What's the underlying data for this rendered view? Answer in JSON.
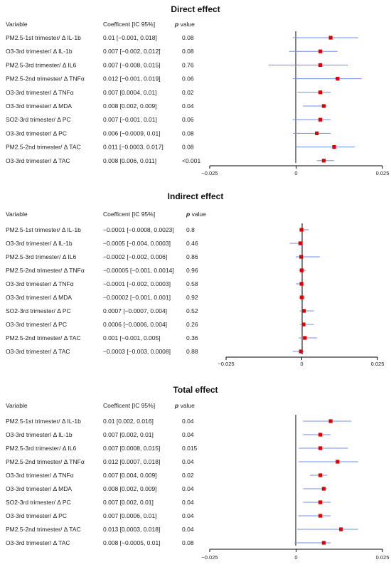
{
  "colors": {
    "ci": "#6f8fe6",
    "point": "#e00000",
    "axis": "#000000"
  },
  "headers": {
    "variable": "Variable",
    "coef": "Coefficent [IC 95%]",
    "p_italic": "p",
    "p_rest": " value"
  },
  "chart_data": [
    {
      "type": "forest",
      "title": "Direct effect",
      "xlim": [
        -0.025,
        0.025
      ],
      "ticks": [
        {
          "value": -0.025,
          "label": "−0.025"
        },
        {
          "value": 0,
          "label": "0"
        },
        {
          "value": 0.025,
          "label": "0.025"
        }
      ],
      "rows": [
        {
          "variable": "PM2.5-1st trimester/ Δ IL-1b",
          "coef": "0.01 [−0.001, 0.018]",
          "p": "0.08",
          "est": 0.01,
          "lo": -0.001,
          "hi": 0.018
        },
        {
          "variable": "O3-3rd trimester/ Δ IL-1b",
          "coef": "0.007 [−0.002, 0.012]",
          "p": "0.08",
          "est": 0.007,
          "lo": -0.002,
          "hi": 0.012
        },
        {
          "variable": "PM2.5-3rd trimester/ Δ IL6",
          "coef": "0.007 [−0.008, 0.015]",
          "p": "0.76",
          "est": 0.007,
          "lo": -0.008,
          "hi": 0.015
        },
        {
          "variable": "PM2.5-2nd trimester/ Δ TNFα",
          "coef": "0.012 [−0.001, 0.019]",
          "p": "0.06",
          "est": 0.012,
          "lo": -0.001,
          "hi": 0.019
        },
        {
          "variable": "O3-3rd trimester/ Δ TNFα",
          "coef": "0.007 [0.0004, 0.01]",
          "p": "0.02",
          "est": 0.007,
          "lo": 0.0004,
          "hi": 0.01
        },
        {
          "variable": "O3-3rd trimester/ Δ MDA",
          "coef": "0.008 [0.002, 0.009]",
          "p": "0.04",
          "est": 0.008,
          "lo": 0.002,
          "hi": 0.009
        },
        {
          "variable": "SO2-3rd trimester/ Δ PC",
          "coef": "0.007 [−0.001, 0.01]",
          "p": "0.06",
          "est": 0.007,
          "lo": -0.001,
          "hi": 0.01
        },
        {
          "variable": "O3-3rd trimester/ Δ PC",
          "coef": "0.006 [−0.0009, 0.01]",
          "p": "0.08",
          "est": 0.006,
          "lo": -0.0009,
          "hi": 0.01
        },
        {
          "variable": "PM2.5-2nd trimester/ Δ TAC",
          "coef": "0.011 [−0.0003, 0.017]",
          "p": "0.08",
          "est": 0.011,
          "lo": -0.0003,
          "hi": 0.017
        },
        {
          "variable": "O3-3rd trimester/ Δ TAC",
          "coef": "0.008 [0.006, 0.011]",
          "p": "<0.001",
          "est": 0.008,
          "lo": 0.006,
          "hi": 0.011
        }
      ]
    },
    {
      "type": "forest",
      "title": "Indirect effect",
      "xlim": [
        -0.025,
        0.025
      ],
      "ticks": [
        {
          "value": -0.025,
          "label": "−0.025"
        },
        {
          "value": 0,
          "label": "0"
        },
        {
          "value": 0.025,
          "label": "0.025"
        }
      ],
      "rows": [
        {
          "variable": "PM2.5-1st trimester/ Δ IL-1b",
          "coef": "−0.0001 [−0.0008, 0.0023]",
          "p": "0.8",
          "est": -0.0001,
          "lo": -0.0008,
          "hi": 0.0023
        },
        {
          "variable": "O3-3rd trimester/ Δ IL-1b",
          "coef": "−0.0005 [−0.004, 0.0003]",
          "p": "0.46",
          "est": -0.0005,
          "lo": -0.004,
          "hi": 0.0003
        },
        {
          "variable": "PM2.5-3rd trimester/ Δ IL6",
          "coef": "−0.0002 [−0.002, 0.006]",
          "p": "0.86",
          "est": -0.0002,
          "lo": -0.002,
          "hi": 0.006
        },
        {
          "variable": "PM2.5-2nd trimester/ Δ TNFα",
          "coef": "−0.00005 [−0.001, 0.0014]",
          "p": "0.96",
          "est": -5e-05,
          "lo": -0.001,
          "hi": 0.0014
        },
        {
          "variable": "O3-3rd trimester/ Δ TNFα",
          "coef": "−0.0001 [−0.002, 0.0003]",
          "p": "0.58",
          "est": -0.0001,
          "lo": -0.002,
          "hi": 0.0003
        },
        {
          "variable": "O3-3rd trimester/ Δ MDA",
          "coef": "−0.00002 [−0.001, 0.001]",
          "p": "0.92",
          "est": -2e-05,
          "lo": -0.001,
          "hi": 0.001
        },
        {
          "variable": "SO2-3rd trimester/ Δ PC",
          "coef": "0.0007 [−0.0007, 0.004]",
          "p": "0.52",
          "est": 0.0007,
          "lo": -0.0007,
          "hi": 0.004
        },
        {
          "variable": "O3-3rd trimester/ Δ PC",
          "coef": "0.0006 [−0.0006, 0.004]",
          "p": "0.26",
          "est": 0.0006,
          "lo": -0.0006,
          "hi": 0.004
        },
        {
          "variable": "PM2.5-2nd trimester/ Δ TAC",
          "coef": "0.001 [−0.001, 0.005]",
          "p": "0.36",
          "est": 0.001,
          "lo": -0.001,
          "hi": 0.005
        },
        {
          "variable": "O3-3rd trimester/ Δ TAC",
          "coef": "−0.0003 [−0.003, 0.0008]",
          "p": "0.88",
          "est": -0.0003,
          "lo": -0.003,
          "hi": 0.0008
        }
      ]
    },
    {
      "type": "forest",
      "title": "Total effect",
      "xlim": [
        -0.025,
        0.025
      ],
      "ticks": [
        {
          "value": -0.025,
          "label": "−0.025"
        },
        {
          "value": 0,
          "label": "0"
        },
        {
          "value": 0.025,
          "label": "0.025"
        }
      ],
      "rows": [
        {
          "variable": "PM2.5-1st trimester/ Δ IL-1b",
          "coef": "0.01 [0.002, 0.016]",
          "p": "0.04",
          "est": 0.01,
          "lo": 0.002,
          "hi": 0.016
        },
        {
          "variable": "O3-3rd trimester/ Δ IL-1b",
          "coef": "0.007 [0.002, 0.01]",
          "p": "0.04",
          "est": 0.007,
          "lo": 0.002,
          "hi": 0.01
        },
        {
          "variable": "PM2.5-3rd trimester/ Δ IL6",
          "coef": "0.007 [0.0008, 0.015]",
          "p": "0.015",
          "est": 0.007,
          "lo": 0.0008,
          "hi": 0.015
        },
        {
          "variable": "PM2.5-2nd trimester/ Δ TNFα",
          "coef": "0.012 [0.0007, 0.018]",
          "p": "0.04",
          "est": 0.012,
          "lo": 0.0007,
          "hi": 0.018
        },
        {
          "variable": "O3-3rd trimester/ Δ TNFα",
          "coef": "0.007 [0.004, 0.009]",
          "p": "0.02",
          "est": 0.007,
          "lo": 0.004,
          "hi": 0.009
        },
        {
          "variable": "O3-3rd trimester/ Δ MDA",
          "coef": "0.008 [0.002, 0.009]",
          "p": "0.04",
          "est": 0.008,
          "lo": 0.002,
          "hi": 0.009
        },
        {
          "variable": "SO2-3rd trimester/ Δ PC",
          "coef": "0.007 [0.002, 0.01]",
          "p": "0.04",
          "est": 0.007,
          "lo": 0.002,
          "hi": 0.01
        },
        {
          "variable": "O3-3rd trimester/ Δ PC",
          "coef": "0.007 [0.0006, 0.01]",
          "p": "0.04",
          "est": 0.007,
          "lo": 0.0006,
          "hi": 0.01
        },
        {
          "variable": "PM2.5-2nd trimester/ Δ TAC",
          "coef": "0.013 [0.0003, 0.018]",
          "p": "0.04",
          "est": 0.013,
          "lo": 0.0003,
          "hi": 0.018
        },
        {
          "variable": "O3-3rd trimester/ Δ TAC",
          "coef": "0.008 [−0.0005, 0.01]",
          "p": "0.08",
          "est": 0.008,
          "lo": -0.0005,
          "hi": 0.01
        }
      ]
    }
  ]
}
